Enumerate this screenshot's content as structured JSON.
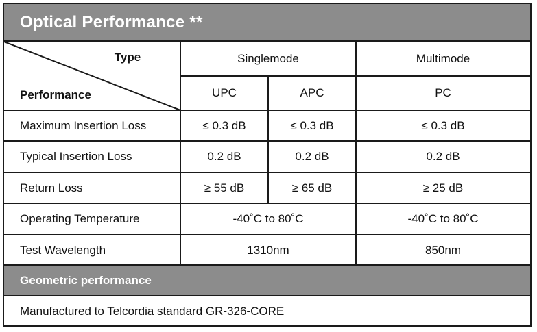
{
  "title": "Optical Performance **",
  "header": {
    "type_label": "Type",
    "performance_label": "Performance",
    "singlemode": "Singlemode",
    "multimode": "Multimode",
    "upc": "UPC",
    "apc": "APC",
    "pc": "PC"
  },
  "rows": [
    {
      "label": "Maximum Insertion Loss",
      "upc": "≤ 0.3 dB",
      "apc": "≤ 0.3 dB",
      "pc": "≤ 0.3 dB"
    },
    {
      "label": "Typical Insertion Loss",
      "upc": "0.2 dB",
      "apc": "0.2 dB",
      "pc": "0.2 dB"
    },
    {
      "label": "Return Loss",
      "upc": "≥ 55 dB",
      "apc": "≥ 65 dB",
      "pc": "≥ 25 dB"
    },
    {
      "label": "Operating Temperature",
      "singlemode": "-40˚C to 80˚C",
      "pc": "-40˚C to 80˚C"
    },
    {
      "label": "Test Wavelength",
      "singlemode": "1310nm",
      "pc": "850nm"
    }
  ],
  "geometric": {
    "heading": "Geometric performance",
    "note": "Manufactured to Telcordia standard GR-326-CORE"
  }
}
